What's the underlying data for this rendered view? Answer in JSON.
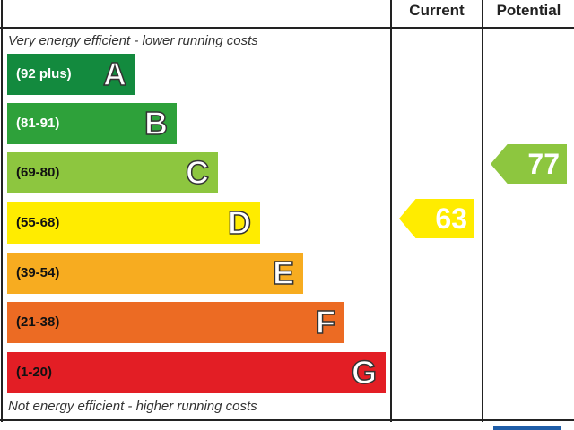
{
  "chart_data": {
    "type": "bar",
    "headers": {
      "current": "Current",
      "potential": "Potential"
    },
    "top_note": "Very energy efficient - lower running costs",
    "bottom_note": "Not energy efficient - higher running costs",
    "bands": [
      {
        "range": "(92 plus)",
        "letter": "A",
        "color": "#138a3e"
      },
      {
        "range": "(81-91)",
        "letter": "B",
        "color": "#2ea13a"
      },
      {
        "range": "(69-80)",
        "letter": "C",
        "color": "#8dc63f"
      },
      {
        "range": "(55-68)",
        "letter": "D",
        "color": "#ffec00"
      },
      {
        "range": "(39-54)",
        "letter": "E",
        "color": "#f7ac20"
      },
      {
        "range": "(21-38)",
        "letter": "F",
        "color": "#ec6b23"
      },
      {
        "range": "(1-20)",
        "letter": "G",
        "color": "#e31e25"
      }
    ],
    "current": {
      "value": 63,
      "band": "D",
      "color": "#ffec00"
    },
    "potential": {
      "value": 77,
      "band": "C",
      "color": "#8dc63f"
    }
  }
}
